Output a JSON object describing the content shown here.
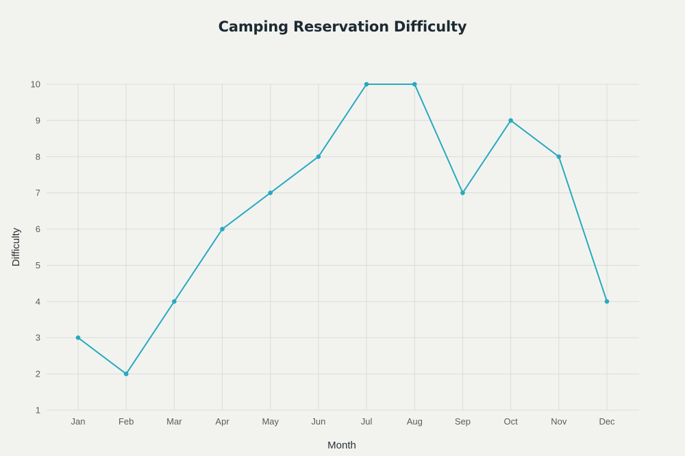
{
  "chart_data": {
    "type": "line",
    "title": "Camping Reservation Difficulty",
    "xlabel": "Month",
    "ylabel": "Difficulty",
    "categories": [
      "Jan",
      "Feb",
      "Mar",
      "Apr",
      "May",
      "Jun",
      "Jul",
      "Aug",
      "Sep",
      "Oct",
      "Nov",
      "Dec"
    ],
    "series": [
      {
        "name": "Difficulty",
        "values": [
          3,
          2,
          4,
          6,
          7,
          8,
          10,
          10,
          7,
          9,
          8,
          4
        ]
      }
    ],
    "yticks": [
      "1",
      "2",
      "3",
      "4",
      "5",
      "6",
      "7",
      "8",
      "9",
      "10"
    ],
    "ylim": [
      1,
      10
    ],
    "grid": true,
    "line_color": "#27a9bf",
    "grid_color": "#d9dcda",
    "background_color": "#f2f3ef"
  }
}
